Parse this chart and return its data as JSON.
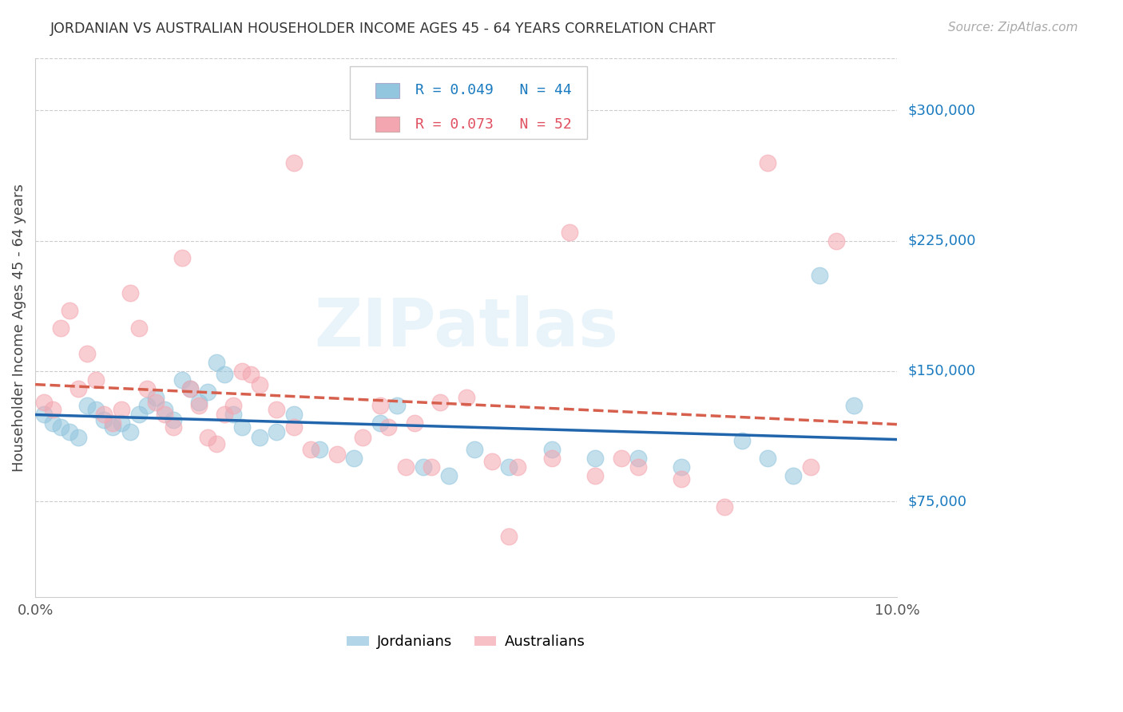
{
  "title": "JORDANIAN VS AUSTRALIAN HOUSEHOLDER INCOME AGES 45 - 64 YEARS CORRELATION CHART",
  "source": "Source: ZipAtlas.com",
  "ylabel": "Householder Income Ages 45 - 64 years",
  "ytick_labels": [
    "$75,000",
    "$150,000",
    "$225,000",
    "$300,000"
  ],
  "ytick_values": [
    75000,
    150000,
    225000,
    300000
  ],
  "ylim": [
    20000,
    330000
  ],
  "xlim": [
    0.0,
    0.1
  ],
  "jordanians_color": "#92c5de",
  "australians_color": "#f4a6b0",
  "jordanians_label": "Jordanians",
  "australians_label": "Australians",
  "trend_jordan_color": "#2166ac",
  "trend_australia_color": "#d6604d",
  "watermark_text": "ZIPatlas",
  "jordanians_x": [
    0.001,
    0.002,
    0.003,
    0.004,
    0.005,
    0.006,
    0.007,
    0.008,
    0.009,
    0.01,
    0.011,
    0.012,
    0.013,
    0.014,
    0.015,
    0.016,
    0.017,
    0.018,
    0.019,
    0.02,
    0.021,
    0.022,
    0.023,
    0.024,
    0.026,
    0.028,
    0.03,
    0.033,
    0.037,
    0.04,
    0.042,
    0.045,
    0.048,
    0.051,
    0.055,
    0.06,
    0.065,
    0.07,
    0.075,
    0.082,
    0.085,
    0.088,
    0.091,
    0.095
  ],
  "jordanians_y": [
    125000,
    120000,
    118000,
    115000,
    112000,
    130000,
    128000,
    122000,
    118000,
    120000,
    115000,
    125000,
    130000,
    135000,
    128000,
    122000,
    145000,
    140000,
    132000,
    138000,
    155000,
    148000,
    125000,
    118000,
    112000,
    115000,
    125000,
    105000,
    100000,
    120000,
    130000,
    95000,
    90000,
    105000,
    95000,
    105000,
    100000,
    100000,
    95000,
    110000,
    100000,
    90000,
    205000,
    130000
  ],
  "australians_x": [
    0.001,
    0.002,
    0.003,
    0.004,
    0.005,
    0.006,
    0.007,
    0.008,
    0.009,
    0.01,
    0.011,
    0.012,
    0.013,
    0.014,
    0.015,
    0.016,
    0.017,
    0.018,
    0.019,
    0.02,
    0.021,
    0.022,
    0.023,
    0.024,
    0.025,
    0.026,
    0.028,
    0.03,
    0.032,
    0.035,
    0.038,
    0.041,
    0.044,
    0.047,
    0.05,
    0.053,
    0.056,
    0.06,
    0.065,
    0.07,
    0.075,
    0.08,
    0.085,
    0.09,
    0.093,
    0.04,
    0.043,
    0.046,
    0.03,
    0.055,
    0.062,
    0.068
  ],
  "australians_y": [
    132000,
    128000,
    175000,
    185000,
    140000,
    160000,
    145000,
    125000,
    120000,
    128000,
    195000,
    175000,
    140000,
    132000,
    125000,
    118000,
    215000,
    140000,
    130000,
    112000,
    108000,
    125000,
    130000,
    150000,
    148000,
    142000,
    128000,
    118000,
    105000,
    102000,
    112000,
    118000,
    120000,
    132000,
    135000,
    98000,
    95000,
    100000,
    90000,
    95000,
    88000,
    72000,
    270000,
    95000,
    225000,
    130000,
    95000,
    95000,
    270000,
    55000,
    230000,
    100000
  ]
}
